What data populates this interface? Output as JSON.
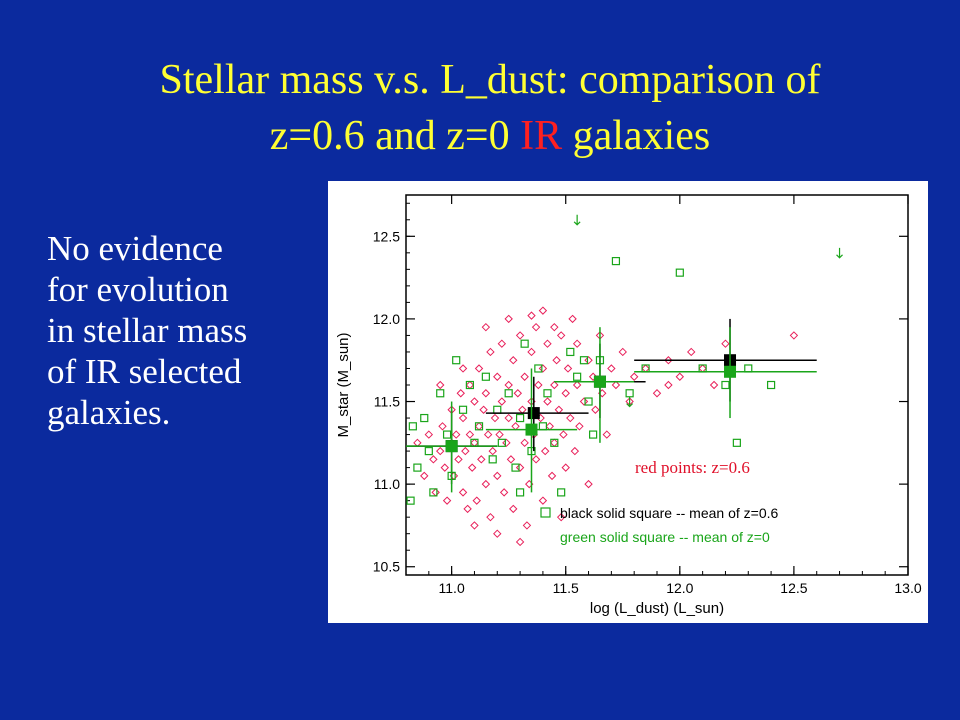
{
  "slide": {
    "title_part1": "Stellar mass v.s. L_dust: comparison of",
    "title_part2": "z=0.6 and z=0",
    "title_highlight": "IR",
    "title_part3": "galaxies",
    "body_lines": [
      "No evidence",
      "for evolution",
      "in stellar mass",
      "of IR selected",
      "galaxies."
    ]
  },
  "colors": {
    "background": "#0b2a9e",
    "title": "#ffff33",
    "title_highlight": "#ff2020",
    "body_text": "#ffffff",
    "red_points": "#e8205a",
    "green_points": "#1aa51a",
    "black_points": "#000000"
  },
  "chart_data": {
    "type": "scatter",
    "xlabel": "log (L_dust) (L_sun)",
    "ylabel": "M_star (M_sun)",
    "xlim": [
      10.8,
      13.0
    ],
    "ylim": [
      10.45,
      12.75
    ],
    "x_ticks": [
      "11.0",
      "11.5",
      "12.0",
      "12.5",
      "13.0"
    ],
    "y_ticks": [
      "10.5",
      "11.0",
      "11.5",
      "12.0",
      "12.5"
    ],
    "legend": {
      "red": "red points: z=0.6",
      "black": "black solid square  -- mean of z=0.6",
      "green": "green solid square -- mean of z=0"
    },
    "series": [
      {
        "name": "red points: z=0.6",
        "marker": "open-diamond",
        "color": "#e8205a",
        "points": [
          [
            10.85,
            11.25
          ],
          [
            10.88,
            11.05
          ],
          [
            10.9,
            11.3
          ],
          [
            10.92,
            11.15
          ],
          [
            10.93,
            10.95
          ],
          [
            10.95,
            11.2
          ],
          [
            10.96,
            11.35
          ],
          [
            10.97,
            11.1
          ],
          [
            10.98,
            10.9
          ],
          [
            11.0,
            11.25
          ],
          [
            11.0,
            11.45
          ],
          [
            11.01,
            11.05
          ],
          [
            11.02,
            11.3
          ],
          [
            11.03,
            11.15
          ],
          [
            11.04,
            11.55
          ],
          [
            11.05,
            10.95
          ],
          [
            11.05,
            11.4
          ],
          [
            11.06,
            11.2
          ],
          [
            11.07,
            10.85
          ],
          [
            11.08,
            11.3
          ],
          [
            11.08,
            11.6
          ],
          [
            11.09,
            11.1
          ],
          [
            11.1,
            11.5
          ],
          [
            11.1,
            11.25
          ],
          [
            11.11,
            10.9
          ],
          [
            11.12,
            11.35
          ],
          [
            11.12,
            11.7
          ],
          [
            11.13,
            11.15
          ],
          [
            11.14,
            11.45
          ],
          [
            11.15,
            11.0
          ],
          [
            11.15,
            11.55
          ],
          [
            11.16,
            11.3
          ],
          [
            11.17,
            11.8
          ],
          [
            11.17,
            10.8
          ],
          [
            11.18,
            11.2
          ],
          [
            11.19,
            11.4
          ],
          [
            11.2,
            11.65
          ],
          [
            11.2,
            11.05
          ],
          [
            11.21,
            11.3
          ],
          [
            11.22,
            11.5
          ],
          [
            11.22,
            11.85
          ],
          [
            11.23,
            10.95
          ],
          [
            11.24,
            11.25
          ],
          [
            11.25,
            11.6
          ],
          [
            11.25,
            11.4
          ],
          [
            11.26,
            11.15
          ],
          [
            11.27,
            11.75
          ],
          [
            11.27,
            10.85
          ],
          [
            11.28,
            11.35
          ],
          [
            11.29,
            11.55
          ],
          [
            11.3,
            11.1
          ],
          [
            11.3,
            11.9
          ],
          [
            11.31,
            11.45
          ],
          [
            11.32,
            11.25
          ],
          [
            11.32,
            11.65
          ],
          [
            11.33,
            10.75
          ],
          [
            11.34,
            11.0
          ],
          [
            11.35,
            11.5
          ],
          [
            11.35,
            11.8
          ],
          [
            11.36,
            11.3
          ],
          [
            11.37,
            11.15
          ],
          [
            11.37,
            11.95
          ],
          [
            11.38,
            11.6
          ],
          [
            11.39,
            11.4
          ],
          [
            11.4,
            10.9
          ],
          [
            11.4,
            11.7
          ],
          [
            11.41,
            11.2
          ],
          [
            11.42,
            11.5
          ],
          [
            11.42,
            11.85
          ],
          [
            11.43,
            11.35
          ],
          [
            11.44,
            11.05
          ],
          [
            11.45,
            11.6
          ],
          [
            11.45,
            11.25
          ],
          [
            11.46,
            11.75
          ],
          [
            11.47,
            11.45
          ],
          [
            11.48,
            10.8
          ],
          [
            11.48,
            11.9
          ],
          [
            11.49,
            11.3
          ],
          [
            11.5,
            11.55
          ],
          [
            11.5,
            11.1
          ],
          [
            11.51,
            11.7
          ],
          [
            11.52,
            11.4
          ],
          [
            11.53,
            12.0
          ],
          [
            11.54,
            11.2
          ],
          [
            11.55,
            11.6
          ],
          [
            11.55,
            11.85
          ],
          [
            11.56,
            11.35
          ],
          [
            11.58,
            11.5
          ],
          [
            11.6,
            11.75
          ],
          [
            11.6,
            11.0
          ],
          [
            11.62,
            11.65
          ],
          [
            11.63,
            11.45
          ],
          [
            11.65,
            11.9
          ],
          [
            11.66,
            11.55
          ],
          [
            11.68,
            11.3
          ],
          [
            11.7,
            11.7
          ],
          [
            11.72,
            11.6
          ],
          [
            11.75,
            11.8
          ],
          [
            11.78,
            11.5
          ],
          [
            11.8,
            11.65
          ],
          [
            11.85,
            11.7
          ],
          [
            11.9,
            11.55
          ],
          [
            11.95,
            11.75
          ],
          [
            12.0,
            11.65
          ],
          [
            12.05,
            11.8
          ],
          [
            12.1,
            11.7
          ],
          [
            12.15,
            11.6
          ],
          [
            12.5,
            11.9
          ],
          [
            12.2,
            11.85
          ],
          [
            11.95,
            11.6
          ],
          [
            11.2,
            10.7
          ],
          [
            11.3,
            10.65
          ],
          [
            11.1,
            10.75
          ],
          [
            11.15,
            11.95
          ],
          [
            11.25,
            12.0
          ],
          [
            11.4,
            12.05
          ],
          [
            11.45,
            11.95
          ],
          [
            11.35,
            12.02
          ],
          [
            11.05,
            11.7
          ],
          [
            10.95,
            11.6
          ]
        ]
      },
      {
        "name": "z=0",
        "marker": "open-square",
        "color": "#1aa51a",
        "points": [
          [
            10.82,
            10.9
          ],
          [
            10.83,
            11.35
          ],
          [
            10.85,
            11.1
          ],
          [
            10.88,
            11.4
          ],
          [
            10.9,
            11.2
          ],
          [
            10.92,
            10.95
          ],
          [
            10.95,
            11.55
          ],
          [
            10.98,
            11.3
          ],
          [
            11.0,
            11.05
          ],
          [
            11.02,
            11.75
          ],
          [
            11.05,
            11.45
          ],
          [
            11.08,
            11.6
          ],
          [
            11.1,
            11.25
          ],
          [
            11.12,
            11.35
          ],
          [
            11.15,
            11.65
          ],
          [
            11.18,
            11.15
          ],
          [
            11.2,
            11.45
          ],
          [
            11.22,
            11.25
          ],
          [
            11.25,
            11.55
          ],
          [
            11.28,
            11.1
          ],
          [
            11.3,
            11.4
          ],
          [
            11.32,
            11.85
          ],
          [
            11.35,
            11.2
          ],
          [
            11.38,
            11.7
          ],
          [
            11.4,
            11.35
          ],
          [
            11.42,
            11.55
          ],
          [
            11.45,
            11.25
          ],
          [
            11.48,
            10.95
          ],
          [
            11.52,
            11.8
          ],
          [
            11.55,
            11.65
          ],
          [
            11.6,
            11.5
          ],
          [
            11.65,
            11.75
          ],
          [
            11.72,
            12.35
          ],
          [
            11.78,
            11.55
          ],
          [
            11.85,
            11.7
          ],
          [
            12.0,
            12.28
          ],
          [
            12.1,
            11.7
          ],
          [
            12.2,
            11.6
          ],
          [
            12.25,
            11.25
          ],
          [
            12.3,
            11.7
          ],
          [
            12.4,
            11.6
          ],
          [
            11.58,
            11.75
          ],
          [
            11.3,
            10.95
          ],
          [
            11.62,
            11.3
          ]
        ]
      },
      {
        "name": "upper limits",
        "marker": "arrow-down",
        "color": "#1aa51a",
        "points": [
          [
            11.55,
            12.6
          ],
          [
            12.7,
            12.4
          ],
          [
            11.78,
            11.5
          ]
        ]
      },
      {
        "name": "black solid square -- mean of z=0.6",
        "marker": "filled-square",
        "color": "#000000",
        "points": [
          [
            11.0,
            11.23
          ],
          [
            11.36,
            11.43
          ],
          [
            11.65,
            11.62
          ],
          [
            12.22,
            11.75
          ]
        ],
        "xerr": [
          [
            10.8,
            11.2
          ],
          [
            11.15,
            11.6
          ],
          [
            11.45,
            11.85
          ],
          [
            11.8,
            12.6
          ]
        ],
        "yerr": [
          [
            11.0,
            11.45
          ],
          [
            11.2,
            11.65
          ],
          [
            11.4,
            11.85
          ],
          [
            11.5,
            12.0
          ]
        ]
      },
      {
        "name": "green solid square -- mean of z=0",
        "marker": "filled-square",
        "color": "#1aa51a",
        "points": [
          [
            11.0,
            11.23
          ],
          [
            11.35,
            11.33
          ],
          [
            11.65,
            11.62
          ],
          [
            12.22,
            11.68
          ]
        ],
        "xerr": [
          [
            10.8,
            11.2
          ],
          [
            11.15,
            11.55
          ],
          [
            11.45,
            11.8
          ],
          [
            11.8,
            12.6
          ]
        ],
        "yerr": [
          [
            10.95,
            11.5
          ],
          [
            10.95,
            11.7
          ],
          [
            11.25,
            11.95
          ],
          [
            11.4,
            11.95
          ]
        ]
      }
    ]
  }
}
